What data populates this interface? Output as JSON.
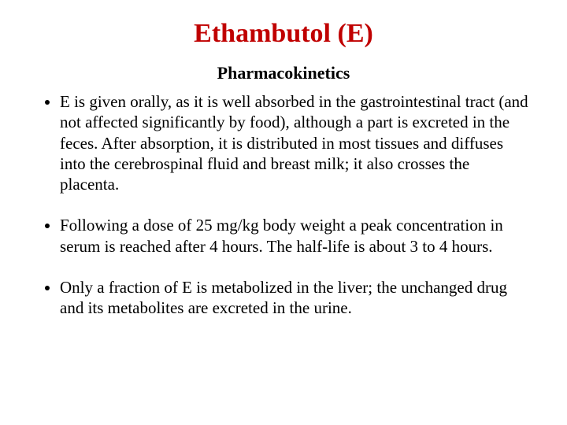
{
  "title": {
    "text": "Ethambutol (E)",
    "color": "#c00000",
    "fontsize": 34
  },
  "subtitle": {
    "text": "Pharmacokinetics",
    "color": "#000000",
    "fontsize": 22
  },
  "body": {
    "fontsize": 21,
    "color": "#000000",
    "bullets": [
      "E is given orally, as it is well absorbed in the gastrointestinal tract (and not affected significantly by food), although a part is excreted in the feces. After absorption, it is distributed in most tissues and diffuses into the cerebrospinal fluid and breast milk; it also crosses the placenta.",
      "Following a dose of 25 mg/kg body weight a peak concentration in serum is reached after 4 hours. The half-life is about 3 to 4 hours.",
      "Only a fraction of E is metabolized in the liver; the unchanged drug and its metabolites are excreted in the urine."
    ]
  },
  "background_color": "#ffffff"
}
